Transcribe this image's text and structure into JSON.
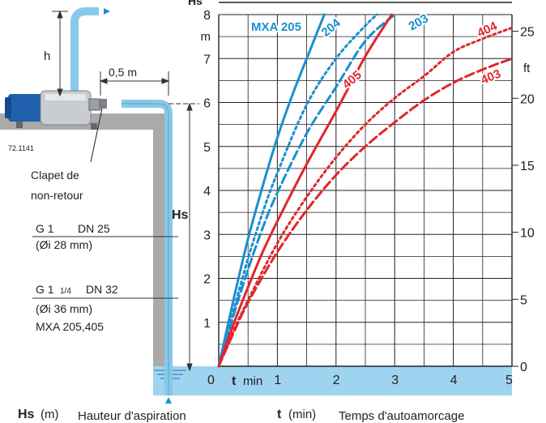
{
  "top_label": "Hs",
  "pump": {
    "id": "72.1141",
    "h_label": "h",
    "distance_label": "0,5 m",
    "valve_line1": "Clapet de",
    "valve_line2": "non-retour",
    "hs_label": "Hs",
    "pipe1": {
      "thread": "G 1",
      "dn": "DN 25",
      "inner": "(Øi 28 mm)"
    },
    "pipe2": {
      "thread": "G 1",
      "thread_fraction": "1/4",
      "dn": "DN 32",
      "inner": "(Øi 36 mm)",
      "models": "MXA 205,405"
    }
  },
  "footer": {
    "hs_bold": "Hs",
    "hs_unit": "(m)",
    "hs_desc": "Hauteur d'aspiration",
    "t_bold": "t",
    "t_unit": "(min)",
    "t_desc": "Temps d'autoamorcage"
  },
  "colors": {
    "blue": "#1a8fd0",
    "red": "#e0262b",
    "water": "#9fd4f0",
    "ground": "#a9aaa9",
    "grid": "#222222"
  },
  "chart_data": {
    "type": "line",
    "xlabel_bold": "t",
    "xlabel": "min",
    "ylabel_left": "m",
    "ylabel_right": "ft",
    "xlim": [
      0,
      5
    ],
    "ylim": [
      0,
      8
    ],
    "x_ticks": [
      "0",
      "1",
      "2",
      "3",
      "4",
      "5"
    ],
    "y_ticks_left": [
      "1",
      "2",
      "3",
      "4",
      "5",
      "6",
      "7",
      "8"
    ],
    "y_ticks_right": [
      "0",
      "5",
      "10",
      "15",
      "20",
      "25"
    ],
    "right_axis_ft_per_m": 3.2808,
    "grid": true,
    "series": [
      {
        "name": "MXA 205",
        "color": "#1a8fd0",
        "dash": "solid",
        "points": [
          [
            0,
            0
          ],
          [
            0.25,
            1.5
          ],
          [
            0.5,
            2.9
          ],
          [
            0.75,
            4.1
          ],
          [
            1.0,
            5.2
          ],
          [
            1.25,
            6.15
          ],
          [
            1.5,
            7.0
          ],
          [
            1.8,
            8.0
          ]
        ]
      },
      {
        "name": "204",
        "color": "#1a8fd0",
        "dash": "dotted",
        "points": [
          [
            0,
            0
          ],
          [
            0.25,
            1.25
          ],
          [
            0.5,
            2.45
          ],
          [
            0.75,
            3.5
          ],
          [
            1.0,
            4.4
          ],
          [
            1.5,
            5.95
          ],
          [
            2.0,
            7.0
          ],
          [
            2.5,
            7.75
          ],
          [
            2.7,
            8.0
          ]
        ]
      },
      {
        "name": "203",
        "color": "#1a8fd0",
        "dash": "dashed",
        "points": [
          [
            0,
            0
          ],
          [
            0.25,
            1.15
          ],
          [
            0.5,
            2.2
          ],
          [
            0.75,
            3.15
          ],
          [
            1.0,
            3.95
          ],
          [
            1.5,
            5.3
          ],
          [
            2.0,
            6.35
          ],
          [
            2.5,
            7.4
          ],
          [
            3.0,
            8.0
          ]
        ]
      },
      {
        "name": "405",
        "color": "#e0262b",
        "dash": "solid",
        "points": [
          [
            0,
            0
          ],
          [
            0.25,
            0.95
          ],
          [
            0.5,
            1.8
          ],
          [
            0.75,
            2.6
          ],
          [
            1.0,
            3.3
          ],
          [
            1.5,
            4.6
          ],
          [
            2.0,
            5.8
          ],
          [
            2.5,
            7.05
          ],
          [
            2.95,
            8.0
          ]
        ]
      },
      {
        "name": "404",
        "color": "#e0262b",
        "dash": "dotted",
        "points": [
          [
            0,
            0
          ],
          [
            0.25,
            0.8
          ],
          [
            0.5,
            1.5
          ],
          [
            1.0,
            2.8
          ],
          [
            1.5,
            3.85
          ],
          [
            2.0,
            4.75
          ],
          [
            2.5,
            5.5
          ],
          [
            3.0,
            6.1
          ],
          [
            3.5,
            6.6
          ],
          [
            4.0,
            7.15
          ],
          [
            4.5,
            7.45
          ],
          [
            5.0,
            7.7
          ]
        ]
      },
      {
        "name": "403",
        "color": "#e0262b",
        "dash": "dashed",
        "points": [
          [
            0,
            0
          ],
          [
            0.25,
            0.75
          ],
          [
            0.5,
            1.45
          ],
          [
            1.0,
            2.6
          ],
          [
            1.5,
            3.55
          ],
          [
            2.0,
            4.35
          ],
          [
            2.5,
            5.0
          ],
          [
            3.0,
            5.55
          ],
          [
            3.5,
            6.05
          ],
          [
            4.0,
            6.45
          ],
          [
            4.5,
            6.75
          ],
          [
            5.0,
            7.0
          ]
        ]
      }
    ]
  }
}
